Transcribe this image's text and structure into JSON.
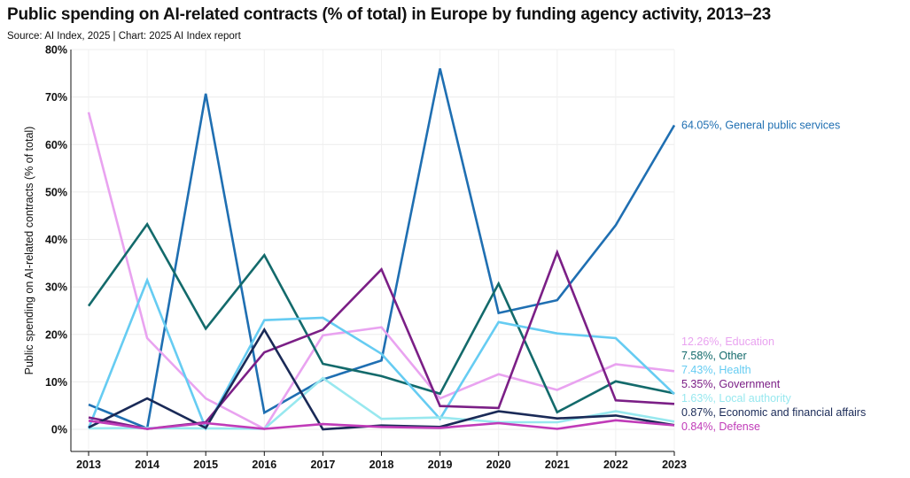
{
  "chart_data": {
    "type": "line",
    "title": "Public spending on AI-related contracts (% of total) in Europe by funding agency activity, 2013–23",
    "subtitle": "Source: AI Index, 2025 | Chart: 2025 AI Index report",
    "xlabel": "",
    "ylabel": "Public spending on AI-related contracts (% of total)",
    "ylim": [
      0,
      80
    ],
    "yticks": [
      0,
      10,
      20,
      30,
      40,
      50,
      60,
      70,
      80
    ],
    "ytick_labels": [
      "0%",
      "10%",
      "20%",
      "30%",
      "40%",
      "50%",
      "60%",
      "70%",
      "80%"
    ],
    "x": [
      "2013",
      "2014",
      "2015",
      "2016",
      "2017",
      "2018",
      "2019",
      "2020",
      "2021",
      "2022",
      "2023"
    ],
    "grid": true,
    "series": [
      {
        "name": "General public services",
        "end_label": "64.05%, General public services",
        "color": "#1f6fb2",
        "values": [
          5.2,
          0.2,
          70.7,
          3.5,
          10.5,
          14.5,
          76.0,
          24.5,
          27.2,
          43.0,
          64.05
        ]
      },
      {
        "name": "Education",
        "end_label": "12.26%, Education",
        "color": "#e9a3f0",
        "values": [
          66.8,
          19.2,
          6.5,
          0.1,
          19.8,
          21.5,
          6.5,
          11.6,
          8.3,
          13.7,
          12.26
        ]
      },
      {
        "name": "Other",
        "end_label": "7.58%, Other",
        "color": "#136a6b",
        "values": [
          26.0,
          43.2,
          21.2,
          36.7,
          13.8,
          11.2,
          7.5,
          30.7,
          3.6,
          10.1,
          7.58
        ]
      },
      {
        "name": "Health",
        "end_label": "7.43%, Health",
        "color": "#66ccf2",
        "values": [
          0.2,
          31.4,
          0.2,
          23.0,
          23.5,
          15.9,
          2.2,
          22.6,
          20.2,
          19.2,
          7.43
        ]
      },
      {
        "name": "Government",
        "end_label": "5.35%, Government",
        "color": "#7b1f86",
        "values": [
          2.5,
          0.1,
          1.5,
          16.2,
          21.0,
          33.7,
          4.9,
          4.5,
          37.3,
          6.1,
          5.35
        ]
      },
      {
        "name": "Local authority",
        "end_label": "1.63%, Local authority",
        "color": "#98e8ef",
        "values": [
          0.2,
          0.3,
          0.2,
          0.1,
          10.8,
          2.2,
          2.5,
          1.5,
          1.5,
          3.8,
          1.63
        ]
      },
      {
        "name": "Economic and financial affairs",
        "end_label": "0.87%, Economic and financial affairs",
        "color": "#1a2a57",
        "values": [
          0.4,
          6.5,
          0.3,
          21.0,
          0.0,
          0.8,
          0.5,
          3.8,
          2.3,
          2.9,
          0.87
        ]
      },
      {
        "name": "Defense",
        "end_label": "0.84%, Defense",
        "color": "#c03bb8",
        "values": [
          1.8,
          0.1,
          1.3,
          0.1,
          1.1,
          0.5,
          0.3,
          1.3,
          0.1,
          1.9,
          0.84
        ]
      }
    ]
  }
}
